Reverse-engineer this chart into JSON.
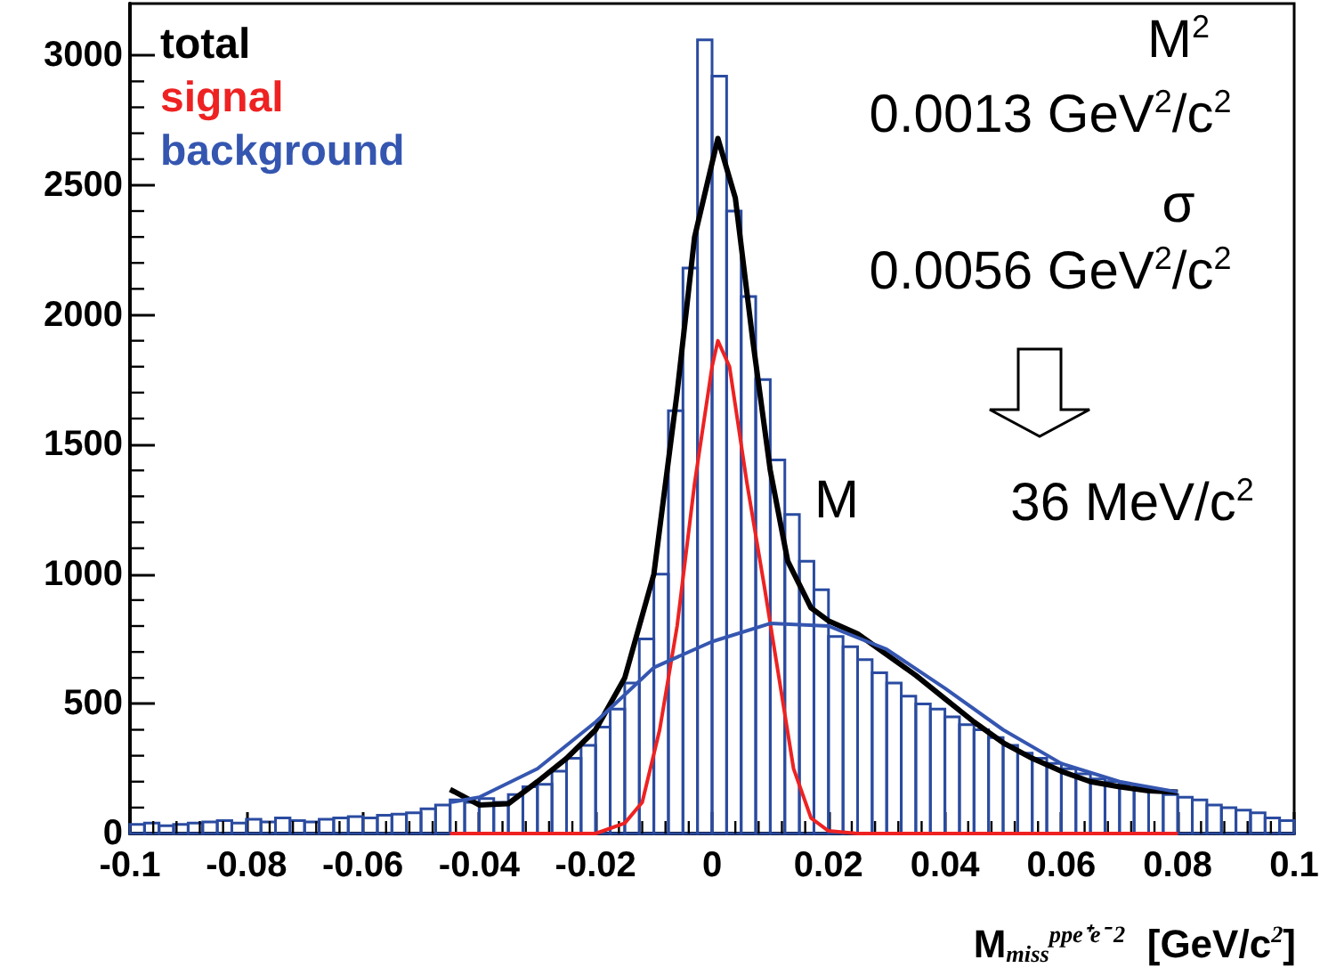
{
  "chart_data": {
    "type": "histogram",
    "bins": [
      -0.1,
      -0.0975,
      -0.095,
      -0.0925,
      -0.09,
      -0.0875,
      -0.085,
      -0.0825,
      -0.08,
      -0.0775,
      -0.075,
      -0.0725,
      -0.07,
      -0.0675,
      -0.065,
      -0.0625,
      -0.06,
      -0.0575,
      -0.055,
      -0.0525,
      -0.05,
      -0.0475,
      -0.045,
      -0.0425,
      -0.04,
      -0.0375,
      -0.035,
      -0.0325,
      -0.03,
      -0.0275,
      -0.025,
      -0.0225,
      -0.02,
      -0.0175,
      -0.015,
      -0.0125,
      -0.01,
      -0.0075,
      -0.005,
      -0.0025,
      0,
      0.0025,
      0.005,
      0.0075,
      0.01,
      0.0125,
      0.015,
      0.0175,
      0.02,
      0.0225,
      0.025,
      0.0275,
      0.03,
      0.0325,
      0.035,
      0.0375,
      0.04,
      0.0425,
      0.045,
      0.0475,
      0.05,
      0.0525,
      0.055,
      0.0575,
      0.06,
      0.0625,
      0.065,
      0.0675,
      0.07,
      0.0725,
      0.075,
      0.0775,
      0.08,
      0.0825,
      0.085,
      0.0875,
      0.09,
      0.0925,
      0.095,
      0.0975,
      0.1
    ],
    "values": [
      35,
      40,
      30,
      35,
      40,
      45,
      50,
      40,
      55,
      45,
      60,
      50,
      45,
      55,
      60,
      65,
      60,
      70,
      75,
      80,
      95,
      110,
      130,
      120,
      135,
      120,
      150,
      180,
      190,
      240,
      290,
      340,
      410,
      480,
      580,
      750,
      1000,
      1630,
      2180,
      3060,
      2920,
      2400,
      2070,
      1750,
      1440,
      1230,
      1050,
      940,
      760,
      720,
      670,
      620,
      580,
      530,
      500,
      480,
      450,
      420,
      400,
      370,
      340,
      310,
      290,
      270,
      250,
      230,
      210,
      200,
      190,
      180,
      170,
      150,
      140,
      130,
      110,
      100,
      90,
      80,
      60,
      50
    ],
    "color": "#2a4ba0",
    "series": [
      {
        "name": "total",
        "type": "line",
        "color": "#000000",
        "x": [
          -0.045,
          -0.04,
          -0.035,
          -0.03,
          -0.025,
          -0.02,
          -0.015,
          -0.01,
          -0.006,
          -0.003,
          0.001,
          0.004,
          0.007,
          0.01,
          0.013,
          0.017,
          0.02,
          0.025,
          0.03,
          0.035,
          0.04,
          0.045,
          0.05,
          0.055,
          0.06,
          0.065,
          0.07,
          0.075,
          0.08
        ],
        "values": [
          170,
          110,
          115,
          200,
          290,
          400,
          600,
          1000,
          1700,
          2300,
          2680,
          2450,
          1900,
          1400,
          1050,
          870,
          820,
          770,
          690,
          610,
          520,
          430,
          350,
          290,
          240,
          200,
          180,
          165,
          160
        ]
      },
      {
        "name": "signal",
        "type": "line",
        "color": "#ee2222",
        "x": [
          -0.045,
          -0.02,
          -0.015,
          -0.012,
          -0.009,
          -0.006,
          -0.003,
          0,
          0.001,
          0.003,
          0.006,
          0.009,
          0.011,
          0.014,
          0.017,
          0.02,
          0.025,
          0.08
        ],
        "values": [
          0,
          0,
          40,
          120,
          400,
          800,
          1350,
          1800,
          1900,
          1800,
          1350,
          950,
          670,
          250,
          60,
          10,
          0,
          0
        ]
      },
      {
        "name": "background",
        "type": "line",
        "color": "#3556b0",
        "x": [
          -0.045,
          -0.04,
          -0.03,
          -0.02,
          -0.01,
          0,
          0.01,
          0.02,
          0.03,
          0.04,
          0.05,
          0.06,
          0.07,
          0.08
        ],
        "values": [
          120,
          140,
          250,
          430,
          640,
          740,
          810,
          800,
          710,
          560,
          400,
          270,
          200,
          160
        ]
      }
    ],
    "xlabel": "M$_{miss}$$^{ppe⁺e⁻ 2}$  [GeV/c$^{2}$]",
    "xlim": [
      -0.1,
      0.1
    ],
    "xticks": [
      -0.1,
      -0.08,
      -0.06,
      -0.04,
      -0.02,
      0,
      0.02,
      0.04,
      0.06,
      0.08,
      0.1
    ],
    "ylim": [
      0,
      3200
    ],
    "yticks": [
      0,
      500,
      1000,
      1500,
      2000,
      2500,
      3000
    ],
    "legend": "top left",
    "marker": "none",
    "grid": false,
    "annotations": [
      "M$^{2}$",
      "0.0013 GeV$^{2}$/c$^{2}$",
      "σ",
      "0.0056 GeV$^{2}$/c$^{2}$",
      "M",
      "36 MeV/c$^{2}$"
    ]
  }
}
